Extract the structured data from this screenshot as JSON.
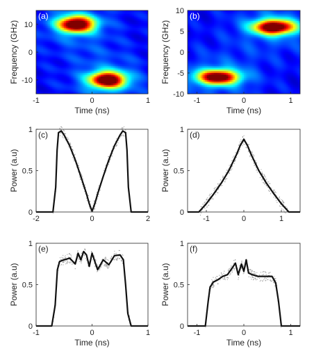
{
  "chart_data": [
    {
      "panel": "(a)",
      "type": "heatmap",
      "xlabel": "Time (ns)",
      "ylabel": "Frequency (GHz)",
      "xlim": [
        -1,
        1
      ],
      "ylim": [
        -15,
        15
      ],
      "xticks": [
        -1,
        0,
        1
      ],
      "yticks": [
        10,
        0,
        -10
      ],
      "blobs": [
        {
          "t": -0.28,
          "f": 10,
          "st": 0.22,
          "sf": 2.0,
          "amp": 1.0
        },
        {
          "t": 0.28,
          "f": -10,
          "st": 0.22,
          "sf": 2.0,
          "amp": 1.0
        }
      ]
    },
    {
      "panel": "(b)",
      "type": "heatmap",
      "xlabel": "Time (ns)",
      "ylabel": "Frequency (GHz)",
      "xlim": [
        -1.2,
        1.2
      ],
      "ylim": [
        -10,
        10
      ],
      "xticks": [
        -1,
        0,
        1
      ],
      "yticks": [
        10,
        5,
        0,
        -5,
        -10
      ],
      "blobs": [
        {
          "t": 0.65,
          "f": 6,
          "st": 0.3,
          "sf": 1.2,
          "amp": 1.0
        },
        {
          "t": -0.55,
          "f": -6,
          "st": 0.3,
          "sf": 1.2,
          "amp": 0.95
        }
      ]
    },
    {
      "panel": "(c)",
      "type": "line",
      "xlabel": "",
      "ylabel": "Power (a.u)",
      "xlim": [
        -2,
        2
      ],
      "ylim": [
        0,
        1
      ],
      "xticks": [
        -2,
        0,
        2
      ],
      "yticks": [
        0,
        0.5,
        1
      ],
      "x": [
        -2,
        -1.4,
        -1.3,
        -1.25,
        -1.2,
        -1.1,
        -1.0,
        -0.8,
        -0.6,
        -0.4,
        -0.2,
        -0.1,
        0,
        0.1,
        0.2,
        0.4,
        0.6,
        0.8,
        1.0,
        1.1,
        1.2,
        1.25,
        1.3,
        1.4,
        2
      ],
      "y": [
        0,
        0,
        0.3,
        0.75,
        0.96,
        0.98,
        0.93,
        0.8,
        0.63,
        0.43,
        0.22,
        0.1,
        0.01,
        0.1,
        0.22,
        0.43,
        0.63,
        0.8,
        0.93,
        0.98,
        0.96,
        0.75,
        0.3,
        0,
        0
      ]
    },
    {
      "panel": "(d)",
      "type": "line",
      "xlabel": "",
      "ylabel": "Power (a.u)",
      "xlim": [
        -1.5,
        1.5
      ],
      "ylim": [
        0,
        1
      ],
      "xticks": [
        -1,
        0,
        1
      ],
      "yticks": [
        0,
        0.5,
        1
      ],
      "x": [
        -1.5,
        -1.2,
        -1.0,
        -0.8,
        -0.6,
        -0.4,
        -0.2,
        -0.1,
        0,
        0.1,
        0.2,
        0.4,
        0.6,
        0.8,
        1.0,
        1.2,
        1.5
      ],
      "y": [
        0,
        0,
        0.1,
        0.22,
        0.35,
        0.5,
        0.69,
        0.8,
        0.88,
        0.8,
        0.69,
        0.5,
        0.35,
        0.22,
        0.1,
        0,
        0
      ]
    },
    {
      "panel": "(e)",
      "type": "line",
      "xlabel": "Time (ns)",
      "ylabel": "Power (a.u)",
      "xlim": [
        -1,
        1
      ],
      "ylim": [
        0,
        1
      ],
      "xticks": [
        -1,
        0,
        1
      ],
      "yticks": [
        0,
        0.5,
        1
      ],
      "x": [
        -1,
        -0.72,
        -0.66,
        -0.62,
        -0.58,
        -0.5,
        -0.4,
        -0.3,
        -0.25,
        -0.2,
        -0.15,
        -0.1,
        -0.05,
        0,
        0.05,
        0.1,
        0.2,
        0.3,
        0.4,
        0.5,
        0.56,
        0.6,
        0.64,
        0.7,
        1
      ],
      "y": [
        0,
        0,
        0.25,
        0.68,
        0.78,
        0.8,
        0.82,
        0.75,
        0.88,
        0.8,
        0.9,
        0.86,
        0.72,
        0.88,
        0.78,
        0.68,
        0.8,
        0.74,
        0.85,
        0.86,
        0.8,
        0.5,
        0.15,
        0,
        0
      ]
    },
    {
      "panel": "(f)",
      "type": "line",
      "xlabel": "Time (ns)",
      "ylabel": "Power (a.u)",
      "xlim": [
        -1.2,
        1.2
      ],
      "ylim": [
        0,
        1
      ],
      "xticks": [
        -1,
        0,
        1
      ],
      "yticks": [
        0,
        0.5,
        1
      ],
      "x": [
        -1.2,
        -0.82,
        -0.76,
        -0.72,
        -0.65,
        -0.55,
        -0.45,
        -0.35,
        -0.25,
        -0.18,
        -0.12,
        -0.05,
        0,
        0.05,
        0.1,
        0.18,
        0.3,
        0.45,
        0.6,
        0.68,
        0.74,
        0.8,
        1.2
      ],
      "y": [
        0,
        0,
        0.3,
        0.47,
        0.53,
        0.56,
        0.6,
        0.62,
        0.7,
        0.76,
        0.62,
        0.75,
        0.66,
        0.8,
        0.64,
        0.62,
        0.6,
        0.6,
        0.6,
        0.52,
        0.3,
        0,
        0
      ]
    }
  ]
}
